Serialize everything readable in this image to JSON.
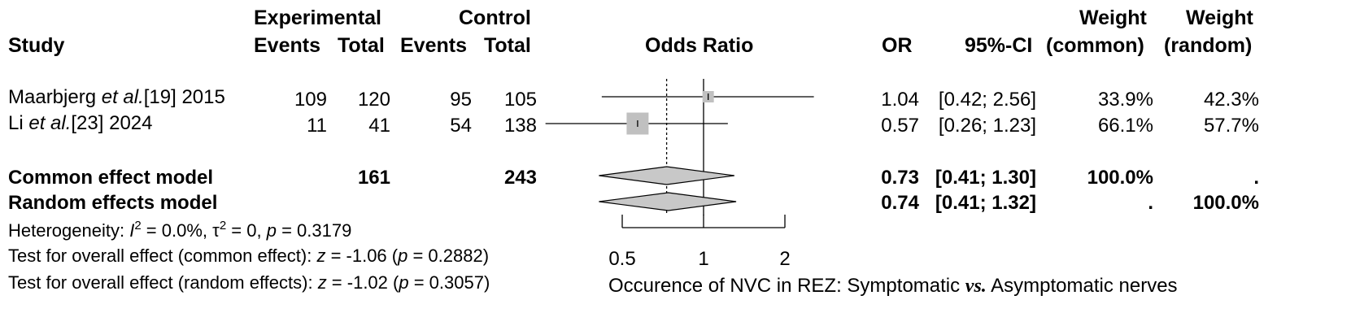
{
  "chart_data": {
    "type": "forest",
    "title": "",
    "headers": {
      "study": "Study",
      "experimental": "Experimental",
      "control": "Control",
      "events": "Events",
      "total": "Total",
      "odds_ratio": "Odds Ratio",
      "or": "OR",
      "ci": "95%-CI",
      "weight": "Weight",
      "weight_common": "(common)",
      "weight_random": "(random)"
    },
    "studies": [
      {
        "author": "Maarbjerg",
        "etal": "et al.",
        "ref": "[19]",
        "year": "2015",
        "exp_events": "109",
        "exp_total": "120",
        "ctrl_events": "95",
        "ctrl_total": "105",
        "or": 1.04,
        "lower": 0.42,
        "upper": 2.56,
        "or_text": "1.04",
        "ci_text": "[0.42; 2.56]",
        "w_common": "33.9%",
        "w_random": "42.3%"
      },
      {
        "author": "Li",
        "etal": "et al.",
        "ref": "[23]",
        "year": "2024",
        "exp_events": "11",
        "exp_total": "41",
        "ctrl_events": "54",
        "ctrl_total": "138",
        "or": 0.57,
        "lower": 0.26,
        "upper": 1.23,
        "or_text": "0.57",
        "ci_text": "[0.26; 1.23]",
        "w_common": "66.1%",
        "w_random": "57.7%"
      }
    ],
    "pooled": [
      {
        "label": "Common effect model",
        "exp_total": "161",
        "ctrl_total": "243",
        "or": 0.73,
        "lower": 0.41,
        "upper": 1.3,
        "or_text": "0.73",
        "ci_text": "[0.41; 1.30]",
        "w_common": "100.0%",
        "w_random": "."
      },
      {
        "label": "Random effects model",
        "or": 0.74,
        "lower": 0.41,
        "upper": 1.32,
        "or_text": "0.74",
        "ci_text": "[0.41; 1.32]",
        "w_common": ".",
        "w_random": "100.0%"
      }
    ],
    "heterogeneity": {
      "label": "Heterogeneity: ",
      "i2": " = 0.0%, ",
      "tau2": " = 0, ",
      "p": " = 0.3179"
    },
    "test_common": {
      "label": "Test for overall effect (common effect): ",
      "z": " = -1.06 (",
      "p": " = 0.2882)"
    },
    "test_random": {
      "label": "Test for overall effect (random effects): ",
      "z": " = -1.02 (",
      "p": " = 0.3057)"
    },
    "x_axis": {
      "scale": "log",
      "ticks": [
        0.5,
        1,
        2
      ],
      "tick_labels": [
        "0.5",
        "1",
        "2"
      ],
      "label_main": "Occurence of NVC in REZ: Symptomatic ",
      "label_vs": "vs.",
      "label_end": " Asymptomatic nerves"
    },
    "reference_line": 1,
    "pooled_line": 0.73,
    "colors": {
      "box": "#c0c0c0",
      "diamond": "#c8c8c8",
      "line": "#000000"
    }
  }
}
